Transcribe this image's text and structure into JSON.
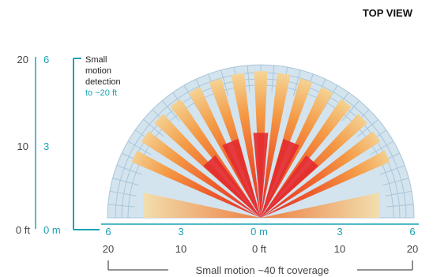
{
  "header": {
    "view_label": "TOP VIEW"
  },
  "left_scale": {
    "ft_ticks": [
      "20",
      "10",
      "0 ft"
    ],
    "m_ticks": [
      "6",
      "3",
      "0 m"
    ]
  },
  "callout": {
    "line1": "Small",
    "line2": "motion",
    "line3": "detection",
    "line4": "to ~20 ft"
  },
  "bottom_scale": {
    "m_ticks": [
      "6",
      "3",
      "0 m",
      "3",
      "6"
    ],
    "ft_ticks": [
      "20",
      "10",
      "0 ft",
      "10",
      "20"
    ],
    "coverage_label": "Small motion ~40 ft coverage"
  },
  "colors": {
    "teal": "#1aa3b4",
    "fan_blue": "#d3e4ef",
    "fan_lines": "#a9c6d8",
    "zone_light": "#f3deaa",
    "zone_mid": "#f28a3c",
    "zone_dark": "#e8502a",
    "zone_red": "#e42d2f",
    "text_gray": "#444444",
    "bracket_gray": "#555555"
  }
}
